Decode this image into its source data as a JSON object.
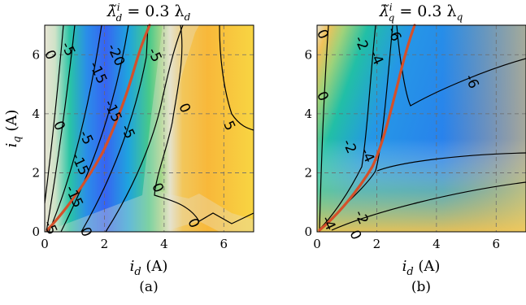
{
  "chart_data": [
    {
      "type": "heatmap",
      "panel": "(a)",
      "title": "λ̃ᵢd = 0.3 λd",
      "title_main": "λ̃",
      "title_sub": "d",
      "title_sup": "i",
      "title_rest": " = 0.3 λ",
      "title_rest_sub": "d",
      "xlabel": "i",
      "xlabel_sub": "d",
      "xlabel_unit": " (A)",
      "ylabel": "i",
      "ylabel_sub": "q",
      "ylabel_unit": " (A)",
      "xlim": [
        0,
        7
      ],
      "ylim": [
        0,
        7
      ],
      "xticks": [
        "0",
        "2",
        "4",
        "6"
      ],
      "yticks": [
        "0",
        "2",
        "4",
        "6"
      ],
      "grid": true,
      "contour_labels": [
        {
          "text": "0",
          "x": 0.2,
          "y": 6.0
        },
        {
          "text": "-5",
          "x": 0.8,
          "y": 6.2
        },
        {
          "text": "-15",
          "x": 1.8,
          "y": 5.4
        },
        {
          "text": "-20",
          "x": 2.4,
          "y": 6.0
        },
        {
          "text": "-5",
          "x": 3.7,
          "y": 6.0
        },
        {
          "text": "-15",
          "x": 2.3,
          "y": 4.1
        },
        {
          "text": "-5",
          "x": 2.8,
          "y": 3.4
        },
        {
          "text": "0",
          "x": 4.7,
          "y": 4.2
        },
        {
          "text": "5",
          "x": 6.2,
          "y": 3.6
        },
        {
          "text": "-5",
          "x": 1.4,
          "y": 3.2
        },
        {
          "text": "0",
          "x": 0.5,
          "y": 3.6
        },
        {
          "text": "-15",
          "x": 1.2,
          "y": 2.3
        },
        {
          "text": "-15",
          "x": 1.0,
          "y": 1.2
        },
        {
          "text": "0",
          "x": 3.8,
          "y": 1.5
        },
        {
          "text": "-5",
          "x": 0.2,
          "y": 0.15
        },
        {
          "text": "0",
          "x": 1.4,
          "y": 0.0
        },
        {
          "text": "0",
          "x": 5.0,
          "y": 0.3
        }
      ]
    },
    {
      "type": "heatmap",
      "panel": "(b)",
      "title": "λ̃ᵢq = 0.3 λq",
      "title_main": "λ̃",
      "title_sub": "q",
      "title_sup": "i",
      "title_rest": " = 0.3 λ",
      "title_rest_sub": "q",
      "xlabel": "i",
      "xlabel_sub": "d",
      "xlabel_unit": " (A)",
      "xlim": [
        0,
        7
      ],
      "ylim": [
        0,
        7
      ],
      "xticks": [
        "0",
        "2",
        "4",
        "6"
      ],
      "yticks": [
        "0",
        "2",
        "4",
        "6"
      ],
      "grid": true,
      "contour_labels": [
        {
          "text": "0",
          "x": 0.2,
          "y": 6.7
        },
        {
          "text": "-2",
          "x": 1.5,
          "y": 6.4
        },
        {
          "text": "-4",
          "x": 2.0,
          "y": 5.9
        },
        {
          "text": "-6",
          "x": 2.6,
          "y": 6.7
        },
        {
          "text": "-6",
          "x": 5.2,
          "y": 5.1
        },
        {
          "text": "0",
          "x": 0.2,
          "y": 4.6
        },
        {
          "text": "-2",
          "x": 1.1,
          "y": 2.9
        },
        {
          "text": "-4",
          "x": 1.7,
          "y": 2.6
        },
        {
          "text": "-4",
          "x": 0.4,
          "y": 0.3
        },
        {
          "text": "-2",
          "x": 1.5,
          "y": 0.5
        },
        {
          "text": "0",
          "x": 1.3,
          "y": -0.1
        }
      ]
    }
  ]
}
